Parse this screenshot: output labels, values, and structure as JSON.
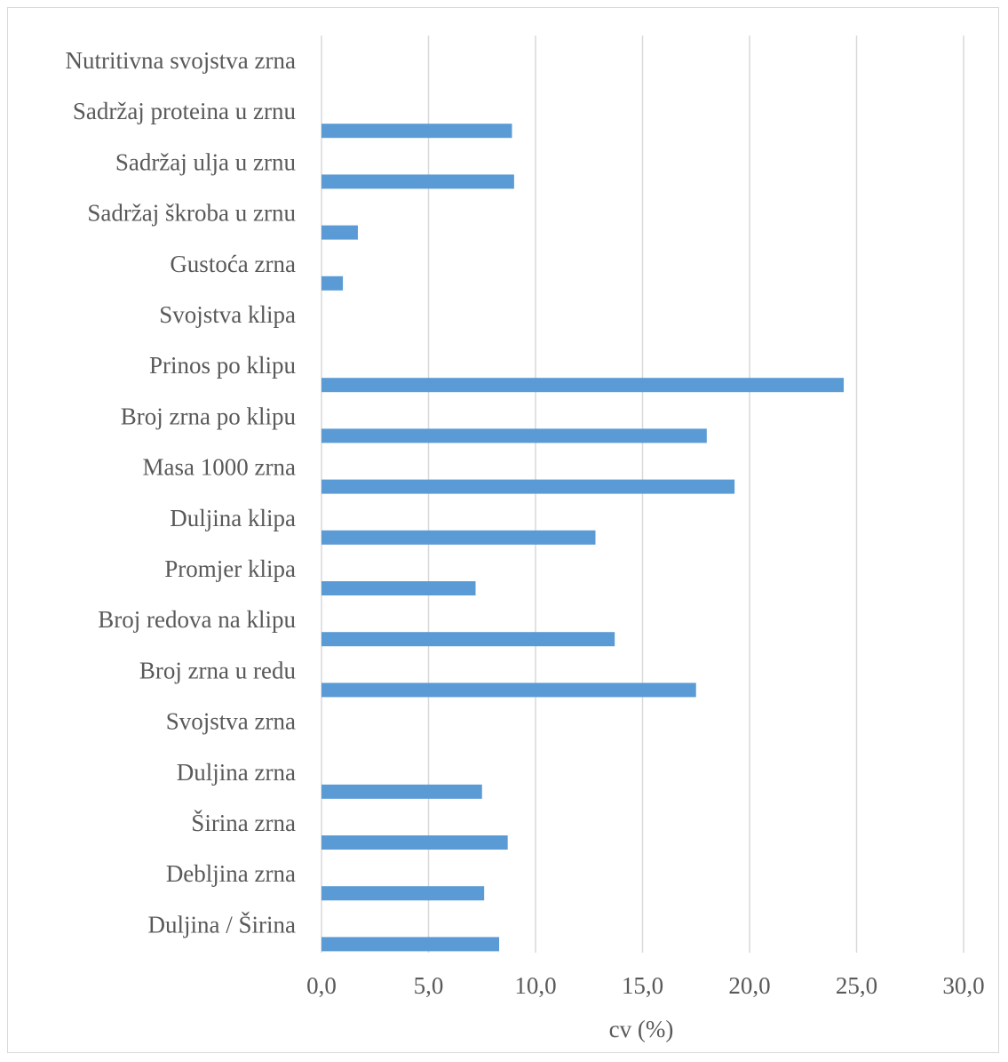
{
  "chart_data": {
    "type": "bar",
    "orientation": "horizontal",
    "title": "",
    "xlabel": "cv (%)",
    "ylabel": "",
    "xlim": [
      0,
      30
    ],
    "xticks": [
      "0,0",
      "5,0",
      "10,0",
      "15,0",
      "20,0",
      "25,0",
      "30,0"
    ],
    "grid": true,
    "bar_color": "#5b9bd5",
    "categories": [
      "Nutritivna svojstva zrna",
      "Sadržaj proteina u zrnu",
      "Sadržaj ulja u zrnu",
      "Sadržaj škroba u zrnu",
      "Gustoća zrna",
      "Svojstva klipa",
      "Prinos po klipu",
      "Broj zrna po klipu",
      "Masa 1000 zrna",
      "Duljina klipa",
      "Promjer klipa",
      "Broj redova na klipu",
      "Broj zrna u redu",
      "Svojstva zrna",
      "Duljina zrna",
      "Širina zrna",
      "Debljina zrna",
      "Duljina / Širina"
    ],
    "values": [
      null,
      8.9,
      9.0,
      1.7,
      1.0,
      null,
      24.4,
      18.0,
      19.3,
      12.8,
      7.2,
      13.7,
      17.5,
      null,
      7.5,
      8.7,
      7.6,
      8.3
    ]
  }
}
